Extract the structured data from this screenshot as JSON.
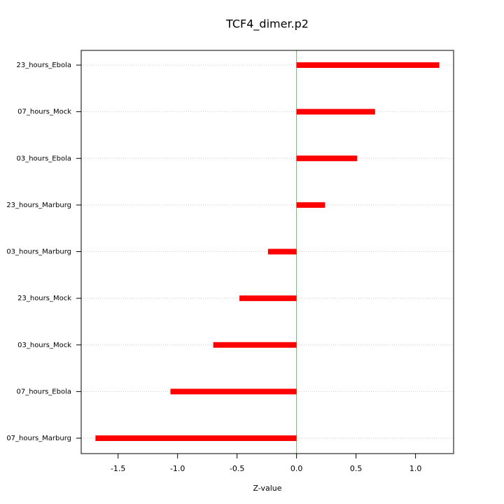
{
  "chart_data": {
    "type": "bar",
    "orientation": "horizontal",
    "title": "TCF4_dimer.p2",
    "x_label": "Z-value",
    "categories": [
      "23_hours_Ebola",
      "07_hours_Mock",
      "03_hours_Ebola",
      "23_hours_Marburg",
      "03_hours_Marburg",
      "23_hours_Mock",
      "03_hours_Mock",
      "07_hours_Ebola",
      "07_hours_Marburg"
    ],
    "values": [
      1.2,
      0.66,
      0.51,
      0.24,
      -0.24,
      -0.48,
      -0.7,
      -1.06,
      -1.69
    ],
    "color": "#ff0000",
    "xlim": [
      -1.81,
      1.32
    ],
    "xticks": [
      -1.5,
      -1.0,
      -0.5,
      0.0,
      0.5,
      1.0
    ],
    "xtick_labels": [
      "-1.5",
      "-1.0",
      "-0.5",
      "0.0",
      "0.5",
      "1.0"
    ],
    "reference_line": {
      "value": 0,
      "color": "#00ff00"
    },
    "grid": true
  }
}
